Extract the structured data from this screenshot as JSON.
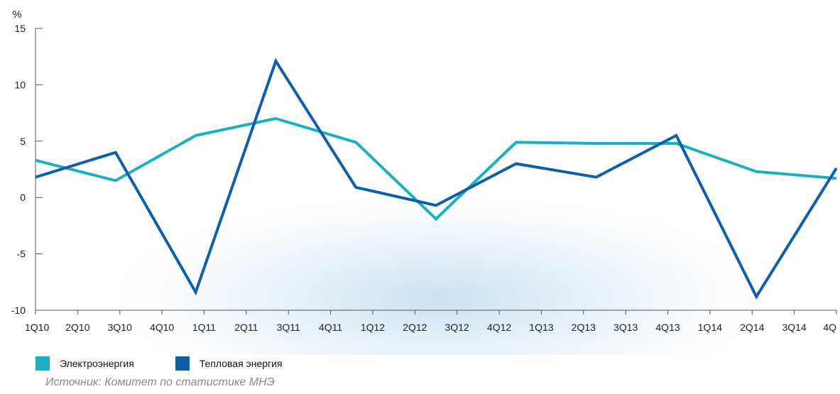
{
  "chart_data": {
    "type": "line",
    "title": "",
    "xlabel": "",
    "ylabel": "%",
    "ylim": [
      -10,
      15
    ],
    "yticks": [
      15,
      10,
      5,
      0,
      -5,
      -10
    ],
    "categories": [
      "1Q10",
      "2Q10",
      "3Q10",
      "4Q10",
      "1Q11",
      "2Q11",
      "3Q11",
      "4Q11",
      "1Q12",
      "2Q12",
      "3Q12",
      "4Q12",
      "1Q13",
      "2Q13",
      "3Q13",
      "4Q13",
      "1Q14",
      "2Q14",
      "3Q14",
      "4Q"
    ],
    "grid": false,
    "legend_position": "bottom-left",
    "series": [
      {
        "name": "Электроэнергия",
        "color": "#1ab0c2",
        "points": [
          [
            0,
            3.3
          ],
          [
            1.9,
            1.5
          ],
          [
            3.8,
            5.5
          ],
          [
            5.7,
            7.0
          ],
          [
            7.6,
            4.9
          ],
          [
            9.5,
            -1.9
          ],
          [
            11.4,
            4.9
          ],
          [
            13.3,
            4.8
          ],
          [
            15.2,
            4.8
          ],
          [
            17.1,
            2.3
          ],
          [
            19,
            1.7
          ]
        ]
      },
      {
        "name": "Тепловая энергия",
        "color": "#0e5fa8",
        "points": [
          [
            0,
            1.8
          ],
          [
            1.9,
            4.0
          ],
          [
            3.8,
            -8.4
          ],
          [
            5.7,
            12.1
          ],
          [
            7.6,
            0.9
          ],
          [
            9.5,
            -0.7
          ],
          [
            11.4,
            3.0
          ],
          [
            13.3,
            1.8
          ],
          [
            15.2,
            5.5
          ],
          [
            17.1,
            -8.8
          ],
          [
            19,
            2.6
          ]
        ]
      }
    ]
  },
  "source": "Источник: Комитет по статистике МНЭ"
}
